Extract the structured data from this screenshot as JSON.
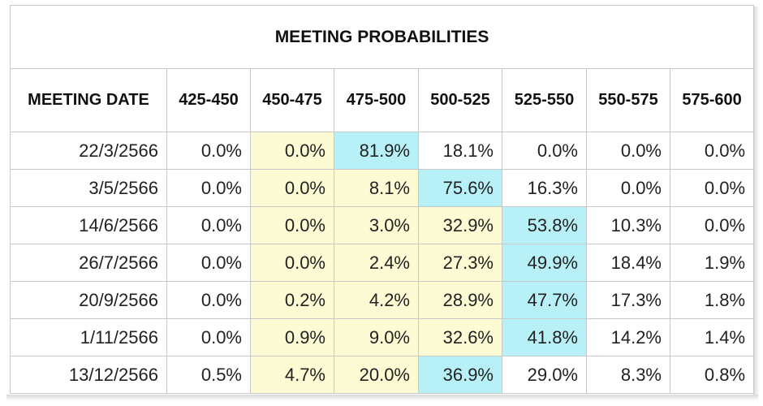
{
  "title": "MEETING PROBABILITIES",
  "header": {
    "date_label": "MEETING DATE",
    "ranges": [
      "425-450",
      "450-475",
      "475-500",
      "500-525",
      "525-550",
      "550-575",
      "575-600"
    ]
  },
  "colors": {
    "highlight_range": "#fdfbd3",
    "highest_probability": "#b7f0f7",
    "border": "#c8c8c8"
  },
  "rows": [
    {
      "date": "22/3/2566",
      "values": [
        "0.0%",
        "0.0%",
        "81.9%",
        "18.1%",
        "0.0%",
        "0.0%",
        "0.0%"
      ],
      "styles": [
        "",
        "yellow",
        "cyan",
        "",
        "",
        "",
        ""
      ]
    },
    {
      "date": "3/5/2566",
      "values": [
        "0.0%",
        "0.0%",
        "8.1%",
        "75.6%",
        "16.3%",
        "0.0%",
        "0.0%"
      ],
      "styles": [
        "",
        "yellow",
        "yellow",
        "cyan",
        "",
        "",
        ""
      ]
    },
    {
      "date": "14/6/2566",
      "values": [
        "0.0%",
        "0.0%",
        "3.0%",
        "32.9%",
        "53.8%",
        "10.3%",
        "0.0%"
      ],
      "styles": [
        "",
        "yellow",
        "yellow",
        "yellow",
        "cyan",
        "",
        ""
      ]
    },
    {
      "date": "26/7/2566",
      "values": [
        "0.0%",
        "0.0%",
        "2.4%",
        "27.3%",
        "49.9%",
        "18.4%",
        "1.9%"
      ],
      "styles": [
        "",
        "yellow",
        "yellow",
        "yellow",
        "cyan",
        "",
        ""
      ]
    },
    {
      "date": "20/9/2566",
      "values": [
        "0.0%",
        "0.2%",
        "4.2%",
        "28.9%",
        "47.7%",
        "17.3%",
        "1.8%"
      ],
      "styles": [
        "",
        "yellow",
        "yellow",
        "yellow",
        "cyan",
        "",
        ""
      ]
    },
    {
      "date": "1/11/2566",
      "values": [
        "0.0%",
        "0.9%",
        "9.0%",
        "32.6%",
        "41.8%",
        "14.2%",
        "1.4%"
      ],
      "styles": [
        "",
        "yellow",
        "yellow",
        "yellow",
        "cyan",
        "",
        ""
      ]
    },
    {
      "date": "13/12/2566",
      "values": [
        "0.5%",
        "4.7%",
        "20.0%",
        "36.9%",
        "29.0%",
        "8.3%",
        "0.8%"
      ],
      "styles": [
        "",
        "yellow",
        "yellow",
        "cyan",
        "",
        "",
        ""
      ]
    }
  ]
}
